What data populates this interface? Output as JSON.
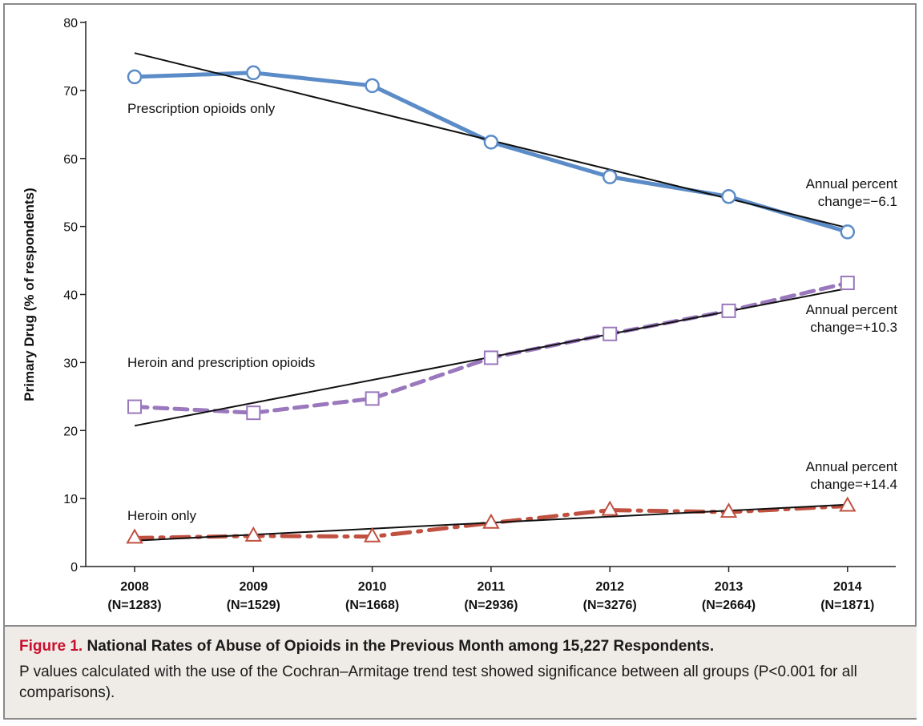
{
  "chart_data": {
    "type": "line",
    "title": "",
    "ylabel": "Primary Drug (% of respondents)",
    "xlabel": "",
    "ylim": [
      0,
      80
    ],
    "yticks": [
      0,
      10,
      20,
      30,
      40,
      50,
      60,
      70,
      80
    ],
    "grid": false,
    "categories": [
      {
        "year": "2008",
        "n": "(N=1283)"
      },
      {
        "year": "2009",
        "n": "(N=1529)"
      },
      {
        "year": "2010",
        "n": "(N=1668)"
      },
      {
        "year": "2011",
        "n": "(N=2936)"
      },
      {
        "year": "2012",
        "n": "(N=3276)"
      },
      {
        "year": "2013",
        "n": "(N=2664)"
      },
      {
        "year": "2014",
        "n": "(N=1871)"
      }
    ],
    "series": [
      {
        "name": "Prescription opioids only",
        "color": "#5b8cc8",
        "marker": "circle",
        "line_style": "solid",
        "values": [
          72.0,
          72.6,
          70.7,
          62.4,
          57.3,
          54.4,
          49.2
        ],
        "trend": [
          75.5,
          49.8
        ],
        "annotation": [
          "Annual percent",
          "change=−6.1"
        ]
      },
      {
        "name": "Heroin and prescription opioids",
        "color": "#9a78bd",
        "marker": "square",
        "line_style": "dashed",
        "values": [
          23.5,
          22.6,
          24.7,
          30.7,
          34.2,
          37.6,
          41.7
        ],
        "trend": [
          20.7,
          40.9
        ],
        "annotation": [
          "Annual percent",
          "change=+10.3"
        ]
      },
      {
        "name": "Heroin only",
        "color": "#c05040",
        "marker": "triangle",
        "line_style": "dashdot",
        "values": [
          4.2,
          4.5,
          4.4,
          6.4,
          8.3,
          8.0,
          8.9
        ],
        "trend": [
          3.8,
          9.1
        ],
        "annotation": [
          "Annual percent",
          "change=+14.4"
        ]
      }
    ]
  },
  "caption": {
    "label": "Figure 1.",
    "title": "National Rates of Abuse of Opioids in the Previous Month among 15,227 Respondents.",
    "description": "P values calculated with the use of the Cochran–Armitage trend test showed significance between all groups (P<0.001 for all comparisons)."
  }
}
